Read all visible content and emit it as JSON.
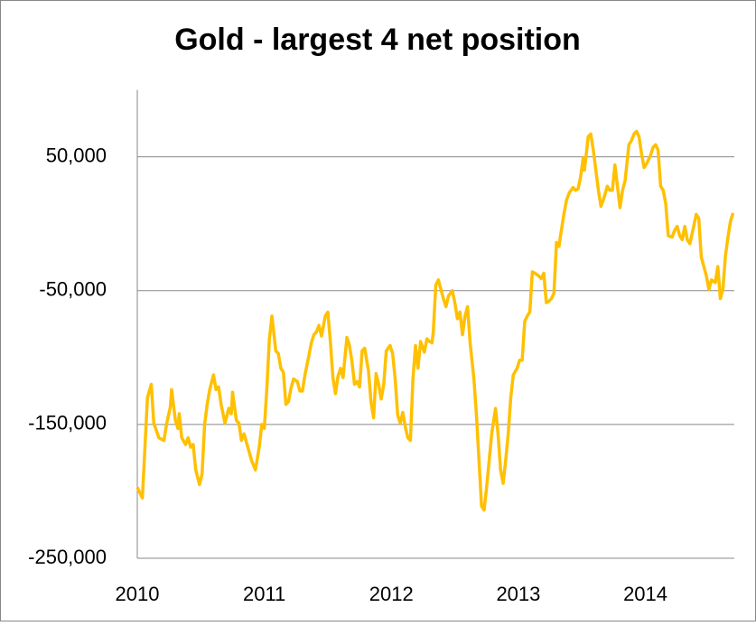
{
  "chart_data": {
    "type": "line",
    "title": "Gold - largest 4 net position",
    "xlim": [
      2010,
      2014.7
    ],
    "xticks": [
      2010,
      2011,
      2012,
      2013,
      2014
    ],
    "ylim": [
      -250000,
      100000
    ],
    "yticks": [
      {
        "value": -250000,
        "label": "-250,000"
      },
      {
        "value": -150000,
        "label": "-150,000"
      },
      {
        "value": -50000,
        "label": "-50,000"
      },
      {
        "value": 50000,
        "label": "50,000"
      }
    ],
    "grid": true,
    "x": [
      2010.0,
      2010.04,
      2010.08,
      2010.11,
      2010.13,
      2010.17,
      2010.21,
      2010.23,
      2010.26,
      2010.27,
      2010.3,
      2010.32,
      2010.33,
      2010.35,
      2010.38,
      2010.4,
      2010.42,
      2010.44,
      2010.46,
      2010.49,
      2010.51,
      2010.53,
      2010.55,
      2010.57,
      2010.6,
      2010.62,
      2010.64,
      2010.66,
      2010.69,
      2010.72,
      2010.74,
      2010.75,
      2010.78,
      2010.8,
      2010.82,
      2010.84,
      2010.87,
      2010.9,
      2010.93,
      2010.96,
      2010.98,
      2011.0,
      2011.02,
      2011.04,
      2011.06,
      2011.09,
      2011.11,
      2011.13,
      2011.15,
      2011.17,
      2011.19,
      2011.21,
      2011.23,
      2011.26,
      2011.28,
      2011.3,
      2011.32,
      2011.35,
      2011.37,
      2011.39,
      2011.41,
      2011.43,
      2011.45,
      2011.48,
      2011.5,
      2011.52,
      2011.54,
      2011.56,
      2011.58,
      2011.6,
      2011.62,
      2011.65,
      2011.67,
      2011.69,
      2011.71,
      2011.73,
      2011.75,
      2011.77,
      2011.79,
      2011.82,
      2011.84,
      2011.86,
      2011.88,
      2011.9,
      2011.92,
      2011.94,
      2011.96,
      2011.99,
      2012.01,
      2012.03,
      2012.05,
      2012.07,
      2012.09,
      2012.11,
      2012.13,
      2012.15,
      2012.17,
      2012.19,
      2012.21,
      2012.23,
      2012.26,
      2012.28,
      2012.3,
      2012.32,
      2012.33,
      2012.35,
      2012.37,
      2012.39,
      2012.41,
      2012.43,
      2012.45,
      2012.48,
      2012.5,
      2012.52,
      2012.54,
      2012.56,
      2012.58,
      2012.6,
      2012.62,
      2012.65,
      2012.67,
      2012.69,
      2012.71,
      2012.73,
      2012.75,
      2012.77,
      2012.79,
      2012.82,
      2012.84,
      2012.86,
      2012.88,
      2012.9,
      2012.92,
      2012.94,
      2012.96,
      2012.99,
      2013.01,
      2013.03,
      2013.05,
      2013.07,
      2013.09,
      2013.11,
      2013.13,
      2013.16,
      2013.18,
      2013.2,
      2013.22,
      2013.24,
      2013.26,
      2013.28,
      2013.3,
      2013.32,
      2013.33,
      2013.36,
      2013.38,
      2013.4,
      2013.43,
      2013.45,
      2013.47,
      2013.49,
      2013.51,
      2013.52,
      2013.55,
      2013.57,
      2013.59,
      2013.61,
      2013.63,
      2013.65,
      2013.67,
      2013.7,
      2013.72,
      2013.74,
      2013.76,
      2013.78,
      2013.8,
      2013.82,
      2013.84,
      2013.87,
      2013.89,
      2013.91,
      2013.93,
      2013.95,
      2013.97,
      2013.99,
      2014.01,
      2014.04,
      2014.06,
      2014.08,
      2014.1,
      2014.12,
      2014.14,
      2014.16,
      2014.18,
      2014.21,
      2014.23,
      2014.25,
      2014.27,
      2014.29,
      2014.31,
      2014.33,
      2014.35,
      2014.38,
      2014.4,
      2014.42,
      2014.44,
      2014.46,
      2014.48,
      2014.5,
      2014.52,
      2014.55,
      2014.57,
      2014.59,
      2014.61,
      2014.63,
      2014.65,
      2014.67,
      2014.69
    ],
    "series": [
      {
        "color": "#ffc000",
        "values": [
          -197000,
          -205000,
          -130000,
          -120000,
          -149000,
          -160000,
          -162000,
          -150000,
          -137000,
          -124000,
          -147000,
          -153000,
          -142000,
          -160000,
          -165000,
          -160000,
          -167000,
          -165000,
          -184000,
          -195000,
          -187000,
          -150000,
          -135000,
          -124000,
          -113000,
          -124000,
          -122000,
          -135000,
          -149000,
          -138000,
          -142000,
          -126000,
          -147000,
          -149000,
          -162000,
          -157000,
          -167000,
          -177000,
          -184000,
          -167000,
          -150000,
          -153000,
          -123000,
          -86000,
          -69000,
          -95000,
          -97000,
          -108000,
          -111000,
          -135000,
          -133000,
          -123000,
          -116000,
          -118000,
          -125000,
          -125000,
          -113000,
          -99000,
          -89000,
          -83000,
          -81000,
          -76000,
          -84000,
          -69000,
          -66000,
          -88000,
          -115000,
          -127000,
          -114000,
          -108000,
          -115000,
          -85000,
          -91000,
          -103000,
          -120000,
          -118000,
          -122000,
          -95000,
          -93000,
          -110000,
          -133000,
          -145000,
          -112000,
          -120000,
          -131000,
          -120000,
          -95000,
          -91000,
          -97000,
          -116000,
          -143000,
          -149000,
          -141000,
          -152000,
          -160000,
          -162000,
          -116000,
          -91000,
          -108000,
          -88000,
          -96000,
          -86000,
          -88000,
          -89000,
          -81000,
          -46000,
          -42000,
          -49000,
          -56000,
          -62000,
          -54000,
          -50000,
          -59000,
          -71000,
          -66000,
          -83000,
          -69000,
          -62000,
          -89000,
          -116000,
          -143000,
          -177000,
          -211000,
          -214000,
          -197000,
          -177000,
          -157000,
          -138000,
          -157000,
          -184000,
          -194000,
          -177000,
          -157000,
          -130000,
          -113000,
          -108000,
          -102000,
          -102000,
          -73000,
          -69000,
          -66000,
          -36000,
          -37000,
          -39000,
          -41000,
          -37000,
          -59000,
          -58000,
          -56000,
          -52000,
          -14000,
          -17000,
          -10000,
          8000,
          18000,
          23000,
          27000,
          25000,
          26000,
          35000,
          49000,
          40000,
          65000,
          67000,
          55000,
          40000,
          25000,
          13000,
          18000,
          28000,
          25000,
          25000,
          44000,
          28000,
          12000,
          25000,
          32000,
          59000,
          62000,
          67000,
          69000,
          65000,
          52000,
          42000,
          45000,
          51000,
          57000,
          59000,
          55000,
          28000,
          25000,
          15000,
          -9000,
          -10000,
          -5000,
          -2000,
          -9000,
          -12000,
          -2000,
          -12000,
          -15000,
          -2000,
          7000,
          4000,
          -25000,
          -32000,
          -39000,
          -49000,
          -42000,
          -44000,
          -32000,
          -56000,
          -49000,
          -24000,
          -10000,
          2000,
          8000
        ]
      }
    ]
  }
}
